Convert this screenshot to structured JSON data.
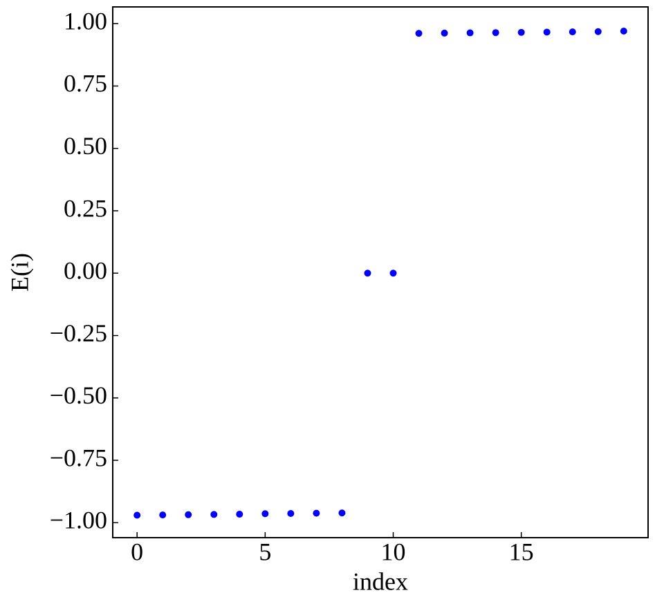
{
  "chart_data": {
    "type": "scatter",
    "x": [
      0,
      1,
      2,
      3,
      4,
      5,
      6,
      7,
      8,
      9,
      10,
      11,
      12,
      13,
      14,
      15,
      16,
      17,
      18,
      19
    ],
    "values": [
      -0.97,
      -0.969,
      -0.968,
      -0.967,
      -0.966,
      -0.964,
      -0.963,
      -0.962,
      -0.961,
      0,
      0,
      0.961,
      0.962,
      0.963,
      0.964,
      0.965,
      0.966,
      0.967,
      0.968,
      0.97
    ],
    "color": "#0000ff",
    "xlabel": "index",
    "ylabel": "E(i)",
    "xlim": [
      -0.95,
      19.95
    ],
    "xticks": [
      0,
      5,
      10,
      15
    ],
    "ylim": [
      -1.06,
      1.067
    ],
    "yticks": [
      {
        "value": -1,
        "label": "−1.00"
      },
      {
        "value": -0.75,
        "label": "−0.75"
      },
      {
        "value": -0.5,
        "label": "−0.50"
      },
      {
        "value": -0.25,
        "label": "−0.25"
      },
      {
        "value": 0,
        "label": "0.00"
      },
      {
        "value": 0.25,
        "label": "0.25"
      },
      {
        "value": 0.5,
        "label": "0.50"
      },
      {
        "value": 0.75,
        "label": "0.75"
      },
      {
        "value": 1,
        "label": "1.00"
      }
    ],
    "grid": false
  }
}
